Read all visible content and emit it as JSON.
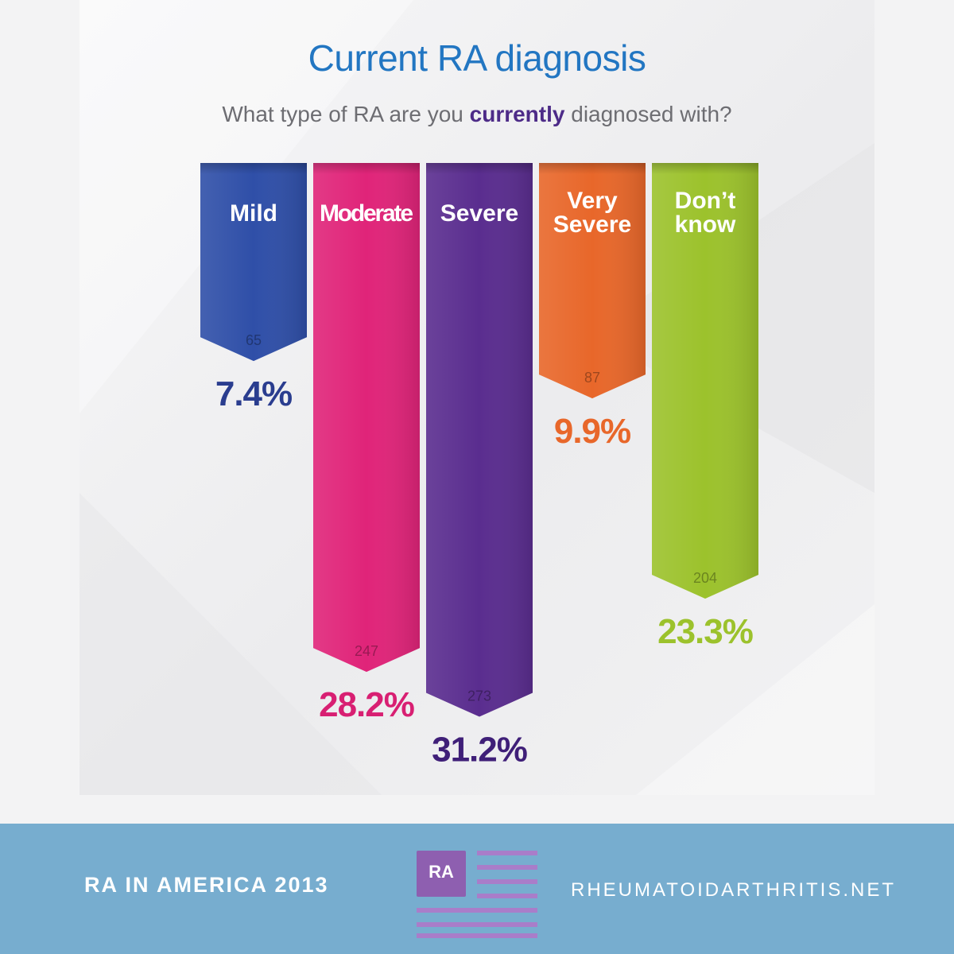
{
  "chart_data": {
    "type": "bar",
    "title": "Current RA diagnosis",
    "subtitle_parts": [
      "What type of RA are you ",
      "currently",
      " diagnosed with?"
    ],
    "categories": [
      "Mild",
      "Moderate",
      "Severe",
      "Very Severe",
      "Don’t know"
    ],
    "label_lines": [
      [
        "Mild"
      ],
      [
        "Moderate"
      ],
      [
        "Severe"
      ],
      [
        "Very",
        "Severe"
      ],
      [
        "Don’t",
        "know"
      ]
    ],
    "counts": [
      65,
      247,
      273,
      87,
      204
    ],
    "percent_labels": [
      "7.4%",
      "28.2%",
      "31.2%",
      "9.9%",
      "23.3%"
    ],
    "values": [
      7.4,
      28.2,
      31.2,
      9.9,
      23.3
    ],
    "unit": "%",
    "colors": [
      "#2f4fa8",
      "#e02479",
      "#5a2d8f",
      "#e8672a",
      "#9cc22c"
    ],
    "percent_colors": [
      "#2a3d8f",
      "#d81f72",
      "#3f1f78",
      "#e8672a",
      "#9cc22c"
    ]
  },
  "footer": {
    "left_text": "RA IN AMERICA 2013",
    "logo_text": "RA",
    "right_text": "RHEUMATOIDARTHRITIS.NET"
  },
  "colors": {
    "title": "#2276c2",
    "subtitle": "#6d6d72",
    "subtitle_emphasis": "#4d2b88",
    "footer_bg": "#77adcf",
    "logo_purple": "#8e5fb0"
  }
}
